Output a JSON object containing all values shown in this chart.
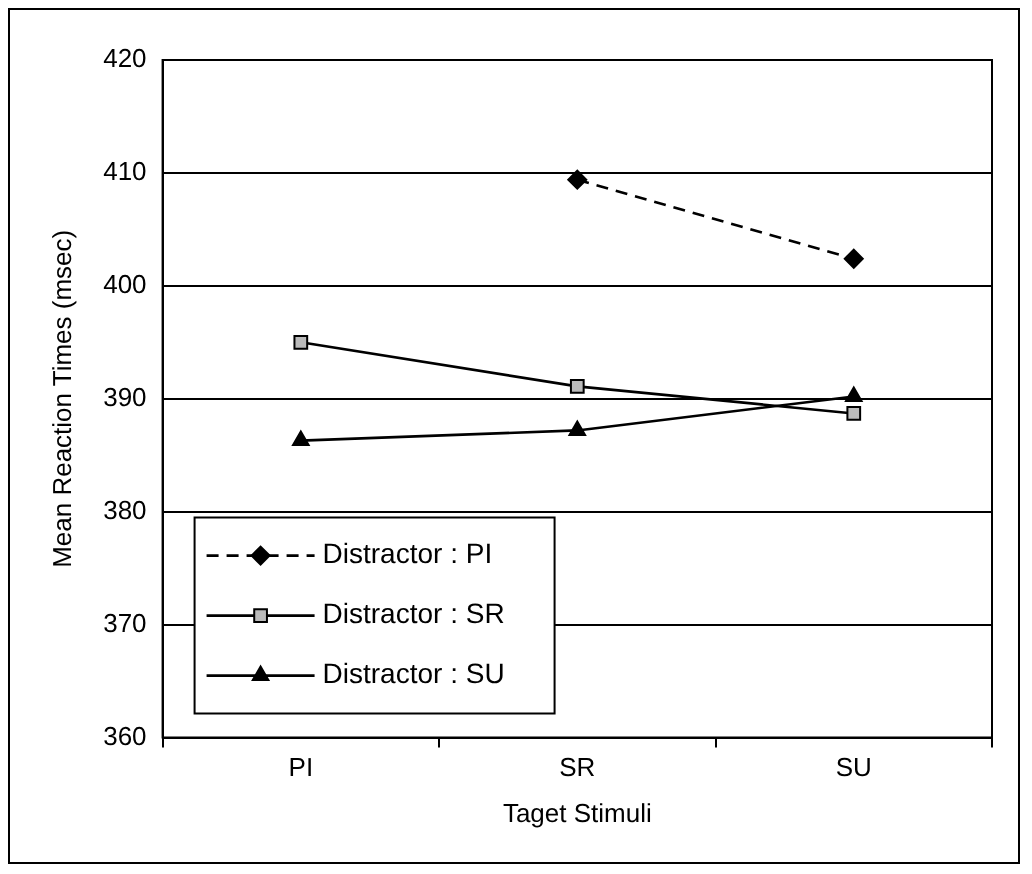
{
  "chart_data": {
    "type": "line",
    "xlabel": "Taget Stimuli",
    "ylabel": "Mean Reaction Times (msec)",
    "categories": [
      "PI",
      "SR",
      "SU"
    ],
    "series": [
      {
        "name": "Distractor : PI",
        "color": "#000000",
        "values": [
          null,
          409.4,
          402.4
        ],
        "marker": "diamond",
        "line_style": "dashed"
      },
      {
        "name": "Distractor : SR",
        "color": "#000000",
        "values": [
          395.0,
          391.1,
          388.7
        ],
        "marker": "square",
        "line_style": "solid"
      },
      {
        "name": "Distractor : SU",
        "color": "#000000",
        "values": [
          386.3,
          387.2,
          390.2
        ],
        "marker": "triangle",
        "line_style": "solid"
      }
    ],
    "ylim": [
      360,
      420
    ],
    "yticks": [
      360,
      370,
      380,
      390,
      400,
      410,
      420
    ],
    "grid": "y",
    "legend": "bottom left"
  }
}
